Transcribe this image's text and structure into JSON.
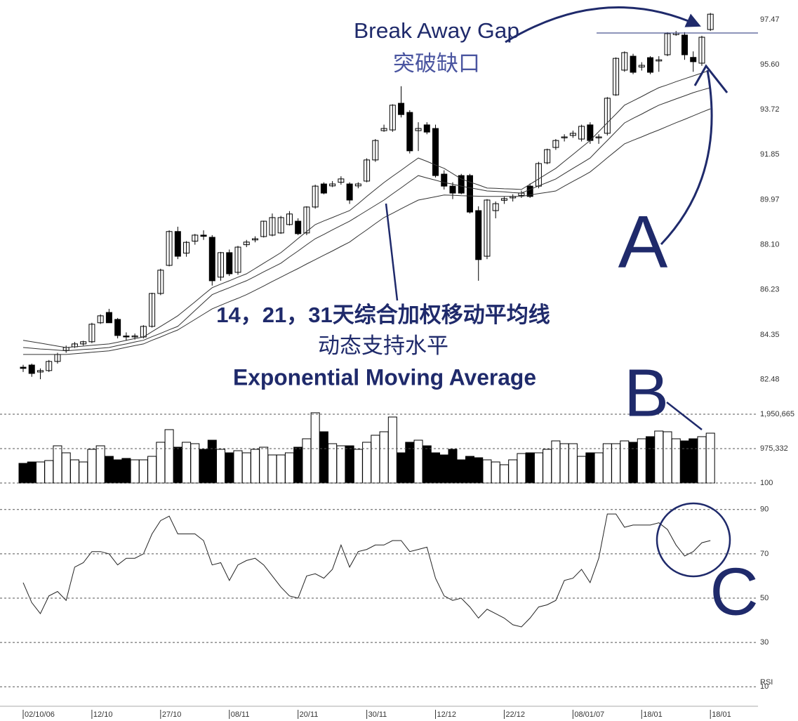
{
  "chart_data": [
    {
      "type": "candlestick",
      "categories": [
        "02/10/06",
        null,
        null,
        null,
        null,
        null,
        null,
        null,
        "12/10",
        null,
        null,
        null,
        null,
        null,
        null,
        null,
        "27/10",
        null,
        null,
        null,
        null,
        null,
        null,
        null,
        "08/11",
        null,
        null,
        null,
        null,
        null,
        null,
        null,
        "20/11",
        null,
        null,
        null,
        null,
        null,
        null,
        null,
        "30/11",
        null,
        null,
        null,
        null,
        null,
        null,
        null,
        "12/12",
        null,
        null,
        null,
        null,
        null,
        null,
        null,
        "22/12",
        null,
        null,
        null,
        null,
        null,
        null,
        null,
        "08/01/07",
        null,
        null,
        null,
        null,
        null,
        null,
        null,
        "18/01",
        null,
        null,
        null,
        null,
        null,
        null,
        null,
        "18/01"
      ],
      "open": [
        83.0,
        83.09,
        82.8,
        82.86,
        83.24,
        83.7,
        83.85,
        83.97,
        84.06,
        84.85,
        85.28,
        84.99,
        84.3,
        84.26,
        84.26,
        84.7,
        86.07,
        87.24,
        88.65,
        87.75,
        88.25,
        88.5,
        88.41,
        86.75,
        87.77,
        86.95,
        88.1,
        88.3,
        88.44,
        88.5,
        88.59,
        88.94,
        89.08,
        88.59,
        89.67,
        90.63,
        90.55,
        90.7,
        90.63,
        90.55,
        90.75,
        91.63,
        92.85,
        92.88,
        93.99,
        93.61,
        92.85,
        93.09,
        92.94,
        91.04,
        90.54,
        90.98,
        90.98,
        89.52,
        87.62,
        89.52,
        89.95,
        90.05,
        90.15,
        90.54,
        90.54,
        91.51,
        92.15,
        92.55,
        92.65,
        92.5,
        93.09,
        92.55,
        92.74,
        94.34,
        95.37,
        95.95,
        95.5,
        95.89,
        95.75,
        96.01,
        96.85,
        96.83,
        95.9,
        95.66,
        97.06
      ],
      "high": [
        83.1,
        83.15,
        82.95,
        83.3,
        83.6,
        83.9,
        84.05,
        84.1,
        84.85,
        85.2,
        85.43,
        85.05,
        84.45,
        84.4,
        84.75,
        86.1,
        87.1,
        88.7,
        88.85,
        88.25,
        88.55,
        88.7,
        88.5,
        87.8,
        87.9,
        88.05,
        88.3,
        88.45,
        89.1,
        89.4,
        89.3,
        89.5,
        89.2,
        89.7,
        90.6,
        90.7,
        90.75,
        90.95,
        90.7,
        90.7,
        91.7,
        92.5,
        93.1,
        93.95,
        94.7,
        93.7,
        93.2,
        93.2,
        93.1,
        91.2,
        90.7,
        91.05,
        91.05,
        89.7,
        90.0,
        89.9,
        90.1,
        90.2,
        90.35,
        90.65,
        91.55,
        92.1,
        92.5,
        92.7,
        92.85,
        93.1,
        93.2,
        92.7,
        94.25,
        95.9,
        96.15,
        96.05,
        95.7,
        95.95,
        95.95,
        96.95,
        97.0,
        96.95,
        96.15,
        96.8,
        97.75
      ],
      "low": [
        82.8,
        82.6,
        82.5,
        82.8,
        83.15,
        83.6,
        83.8,
        83.9,
        84.0,
        84.8,
        84.9,
        84.2,
        84.1,
        84.15,
        84.2,
        84.65,
        86.0,
        87.2,
        87.5,
        87.6,
        88.1,
        88.3,
        86.4,
        86.6,
        86.8,
        86.85,
        88.0,
        88.2,
        88.4,
        88.45,
        88.55,
        88.9,
        88.5,
        88.5,
        89.6,
        90.2,
        90.5,
        90.6,
        89.8,
        90.45,
        90.7,
        91.55,
        92.8,
        92.8,
        93.4,
        91.9,
        92.0,
        92.7,
        90.9,
        90.4,
        90.0,
        90.2,
        89.4,
        86.6,
        87.5,
        89.2,
        89.8,
        89.9,
        90.05,
        90.05,
        90.45,
        91.45,
        92.05,
        92.4,
        92.55,
        92.4,
        92.3,
        92.3,
        92.65,
        94.3,
        95.3,
        95.2,
        95.35,
        95.2,
        95.3,
        95.95,
        96.8,
        95.8,
        95.3,
        95.55,
        97.0
      ],
      "close": [
        82.95,
        82.74,
        82.86,
        83.24,
        83.53,
        83.82,
        83.97,
        84.06,
        84.79,
        85.14,
        84.85,
        84.32,
        84.26,
        84.3,
        84.7,
        86.07,
        87.04,
        88.65,
        87.62,
        88.2,
        88.5,
        88.45,
        86.6,
        87.77,
        86.89,
        88.0,
        88.21,
        88.35,
        89.08,
        89.23,
        89.23,
        89.38,
        88.56,
        89.67,
        90.54,
        90.25,
        90.63,
        90.84,
        89.96,
        90.63,
        91.63,
        92.44,
        92.94,
        93.91,
        93.52,
        92.01,
        92.94,
        92.79,
        90.98,
        90.54,
        90.25,
        90.25,
        89.46,
        87.48,
        89.96,
        89.81,
        90.02,
        90.11,
        90.25,
        90.11,
        91.48,
        92.06,
        92.44,
        92.59,
        92.74,
        93.03,
        92.44,
        92.59,
        94.2,
        95.86,
        96.1,
        95.28,
        95.57,
        95.28,
        95.8,
        96.89,
        96.91,
        96.01,
        95.72,
        96.74,
        97.7
      ],
      "up_color": "#ffffff",
      "down_color": "#000000",
      "series": [
        {
          "color": "#333333",
          "values": [
            84.12,
            84.06,
            84.0,
            83.94,
            83.88,
            83.82,
            83.85,
            83.88,
            83.91,
            83.94,
            83.97,
            84.04,
            84.12,
            84.19,
            84.26,
            84.48,
            84.7,
            84.92,
            85.14,
            85.43,
            85.72,
            86.02,
            86.31,
            86.46,
            86.6,
            86.75,
            86.89,
            87.11,
            87.33,
            87.55,
            87.77,
            88.06,
            88.36,
            88.65,
            88.94,
            89.09,
            89.23,
            89.38,
            89.52,
            89.81,
            90.11,
            90.4,
            90.69,
            90.95,
            91.2,
            91.46,
            91.71,
            91.57,
            91.42,
            91.28,
            91.06,
            90.84,
            90.71,
            90.59,
            90.46,
            90.45,
            90.43,
            90.42,
            90.4,
            90.62,
            90.84,
            91.06,
            91.28,
            91.57,
            91.86,
            92.15,
            92.44,
            92.81,
            93.18,
            93.54,
            93.91,
            94.09,
            94.27,
            94.46,
            94.64,
            94.76,
            94.89,
            95.01,
            95.13,
            95.25,
            95.37
          ]
        },
        {
          "color": "#333333",
          "values": [
            83.82,
            83.79,
            83.76,
            83.74,
            83.71,
            83.68,
            83.71,
            83.74,
            83.76,
            83.79,
            83.82,
            83.9,
            83.97,
            84.05,
            84.12,
            84.27,
            84.41,
            84.56,
            84.7,
            85.03,
            85.36,
            85.69,
            86.02,
            86.17,
            86.31,
            86.46,
            86.6,
            86.78,
            86.97,
            87.15,
            87.33,
            87.59,
            87.84,
            88.1,
            88.35,
            88.53,
            88.72,
            88.9,
            89.08,
            89.3,
            89.52,
            89.74,
            89.96,
            90.22,
            90.47,
            90.73,
            90.98,
            90.88,
            90.79,
            90.69,
            90.62,
            90.54,
            90.47,
            90.41,
            90.34,
            90.32,
            90.3,
            90.27,
            90.25,
            90.4,
            90.55,
            90.69,
            90.84,
            91.06,
            91.28,
            91.49,
            91.71,
            92.08,
            92.44,
            92.81,
            93.17,
            93.36,
            93.54,
            93.73,
            93.91,
            94.04,
            94.17,
            94.3,
            94.43,
            94.54,
            94.64
          ]
        },
        {
          "color": "#333333",
          "values": [
            83.53,
            83.53,
            83.53,
            83.53,
            83.53,
            83.53,
            83.56,
            83.59,
            83.62,
            83.65,
            83.68,
            83.75,
            83.83,
            83.9,
            83.97,
            84.12,
            84.26,
            84.41,
            84.55,
            84.77,
            84.99,
            85.21,
            85.43,
            85.58,
            85.73,
            85.87,
            86.02,
            86.2,
            86.38,
            86.57,
            86.75,
            86.93,
            87.11,
            87.3,
            87.48,
            87.66,
            87.84,
            88.03,
            88.21,
            88.47,
            88.72,
            88.98,
            89.23,
            89.41,
            89.6,
            89.78,
            89.96,
            90.03,
            90.1,
            90.17,
            90.16,
            90.14,
            90.13,
            90.12,
            90.11,
            90.11,
            90.11,
            90.11,
            90.11,
            90.17,
            90.23,
            90.28,
            90.34,
            90.54,
            90.74,
            90.93,
            91.13,
            91.42,
            91.72,
            92.01,
            92.3,
            92.45,
            92.59,
            92.74,
            92.88,
            93.03,
            93.18,
            93.32,
            93.47,
            93.62,
            93.76
          ]
        }
      ],
      "ylim": [
        81.92,
        98.29
      ],
      "yticks": [
        82.48,
        84.35,
        86.23,
        {
          "value": 88.1,
          "label": "88.10"
        },
        89.97,
        91.85,
        93.72,
        {
          "value": 95.6,
          "label": "95.60"
        },
        97.47
      ],
      "annotations": [
        "Break Away Gap",
        "突破缺口",
        "14，21，31天综合加权移动平均线",
        "动态支持水平",
        "Exponential Moving Average",
        "A",
        "B",
        "C"
      ]
    },
    {
      "type": "bar",
      "values": [
        557000,
        597000,
        597000,
        637000,
        1055000,
        856000,
        657000,
        597000,
        955000,
        1055000,
        756000,
        657000,
        697000,
        657000,
        657000,
        756000,
        1155000,
        1513000,
        1015000,
        1155000,
        1115000,
        955000,
        1214000,
        955000,
        856000,
        916000,
        856000,
        955000,
        1015000,
        796000,
        796000,
        856000,
        1015000,
        1254000,
        1991000,
        1453000,
        1115000,
        1055000,
        1055000,
        955000,
        1155000,
        1354000,
        1453000,
        1871000,
        856000,
        1155000,
        1214000,
        1055000,
        856000,
        796000,
        955000,
        657000,
        756000,
        717000,
        657000,
        597000,
        518000,
        657000,
        836000,
        856000,
        856000,
        955000,
        1194000,
        1115000,
        1115000,
        756000,
        856000,
        856000,
        1115000,
        1115000,
        1194000,
        1155000,
        1254000,
        1314000,
        1473000,
        1453000,
        1254000,
        1194000,
        1254000,
        1314000,
        1413000
      ],
      "ylim": [
        0,
        2050000
      ],
      "yticks": [
        100,
        {
          "value": 975332,
          "label": "975,332"
        },
        {
          "value": 1950665,
          "label": "1,950,665"
        }
      ],
      "grid": true
    },
    {
      "type": "line",
      "values": [
        57,
        48,
        43,
        51,
        53,
        49,
        64,
        66,
        71,
        71,
        70,
        65,
        68,
        68,
        70,
        79,
        85,
        87,
        79,
        79,
        79,
        76,
        65,
        66,
        58,
        65,
        67,
        68,
        65,
        60,
        55,
        51,
        50,
        60,
        61,
        59,
        63,
        74,
        64,
        71,
        72,
        74,
        74,
        76,
        76,
        71,
        72,
        73,
        59,
        51,
        49,
        50,
        46,
        41,
        45,
        43,
        41,
        38,
        37,
        41,
        46,
        47,
        49,
        58,
        59,
        63,
        57,
        68,
        88,
        88,
        82,
        83,
        83,
        83,
        84,
        81,
        74,
        69,
        71,
        75,
        76
      ],
      "color": "#222222",
      "ylim": [
        5,
        95
      ],
      "yticks": [
        10,
        30,
        50,
        70,
        90
      ],
      "y_label": "RSI",
      "grid": true
    }
  ]
}
